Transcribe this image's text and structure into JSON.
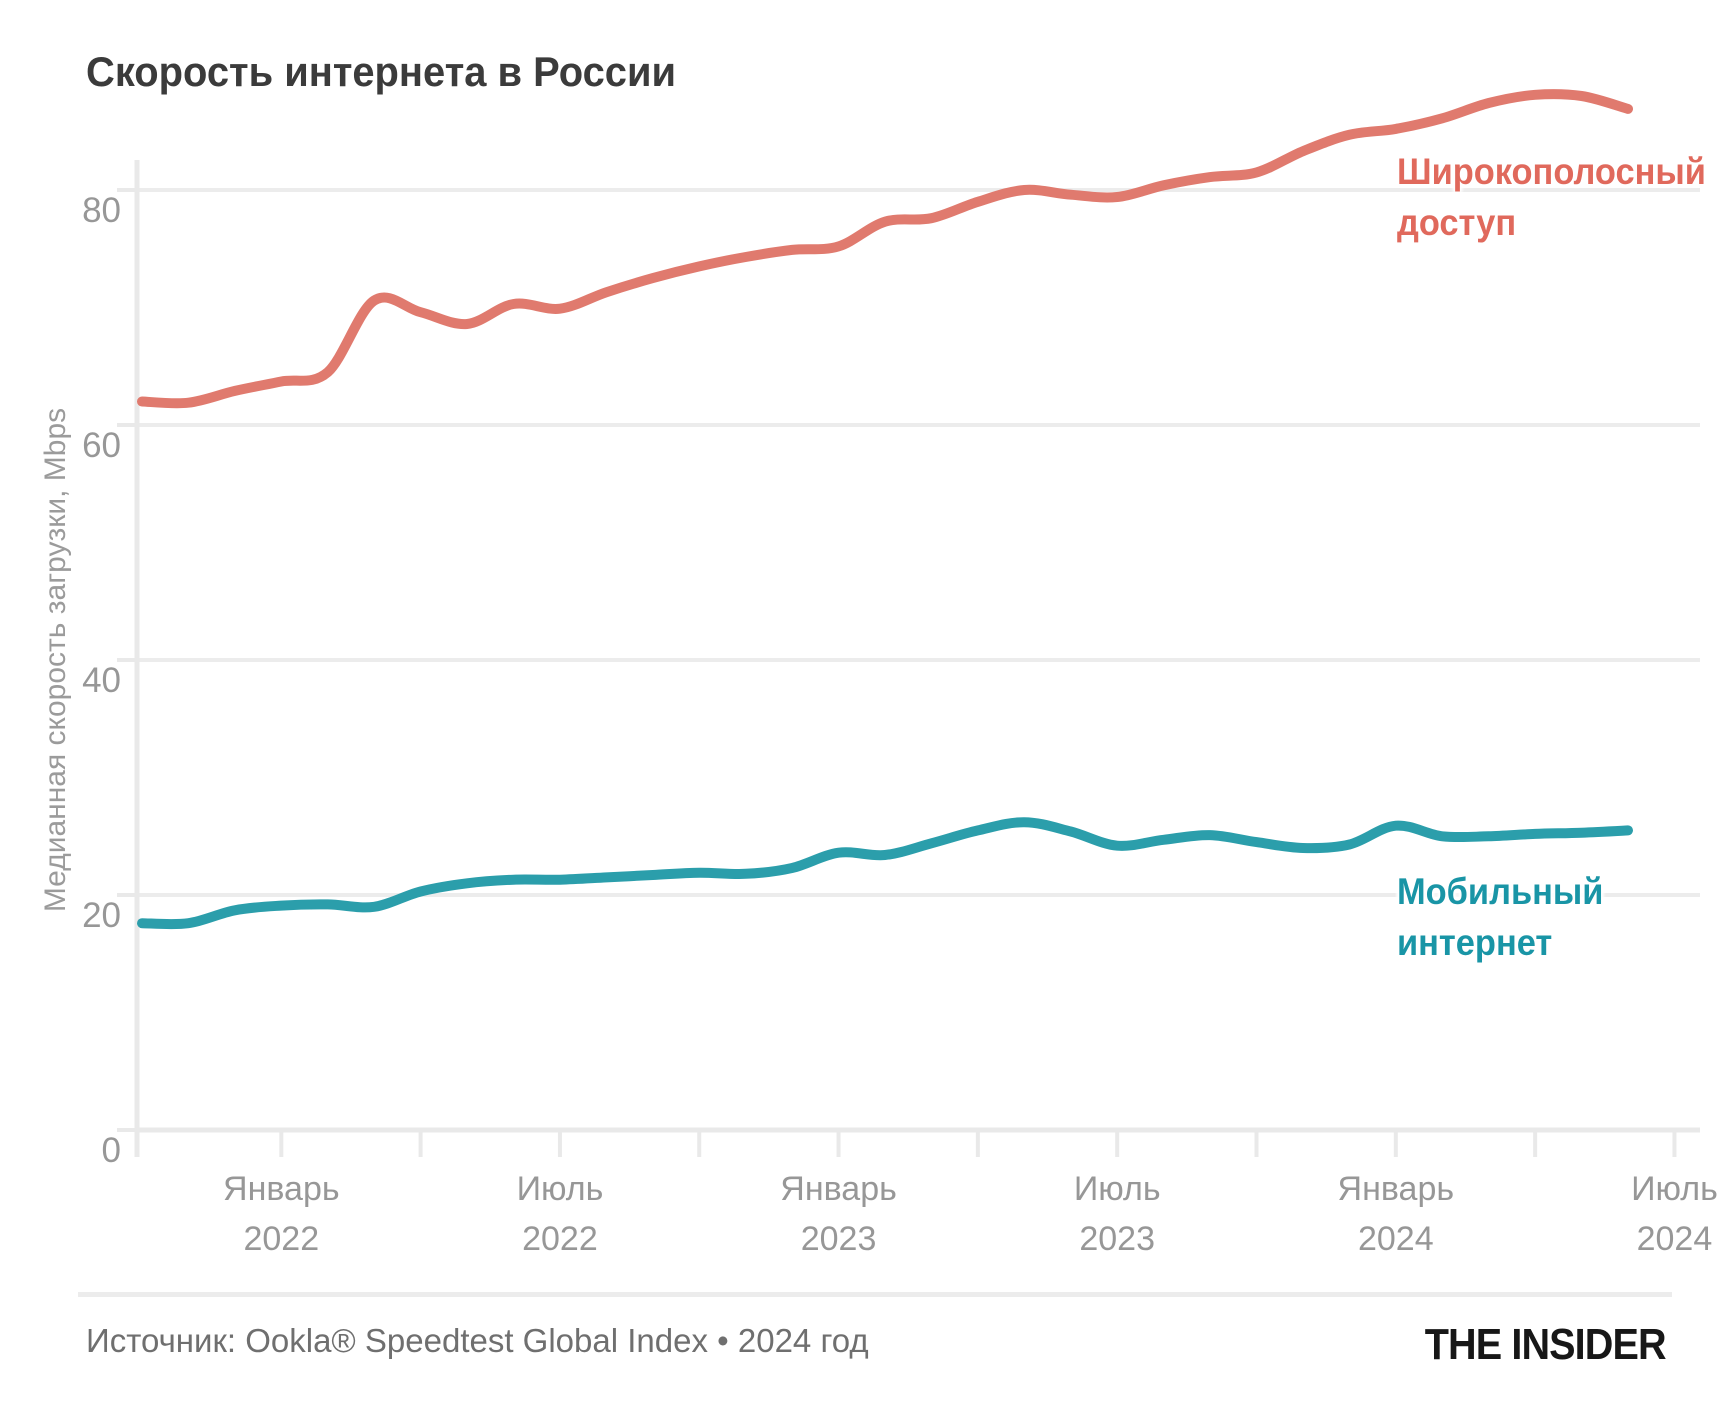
{
  "chart_data": {
    "type": "line",
    "title": "Скорость интернета в России",
    "ylabel": "Медианная скорость загрузки, Mbps",
    "ylim": [
      0,
      90
    ],
    "y_ticks": [
      0,
      20,
      40,
      60,
      80
    ],
    "grid": true,
    "legend_position": "end-of-line",
    "x": [
      "2021-10",
      "2021-11",
      "2021-12",
      "2022-01",
      "2022-02",
      "2022-03",
      "2022-04",
      "2022-05",
      "2022-06",
      "2022-07",
      "2022-08",
      "2022-09",
      "2022-10",
      "2022-11",
      "2022-12",
      "2023-01",
      "2023-02",
      "2023-03",
      "2023-04",
      "2023-05",
      "2023-06",
      "2023-07",
      "2023-08",
      "2023-09",
      "2023-10",
      "2023-11",
      "2023-12",
      "2024-01",
      "2024-02",
      "2024-03",
      "2024-04",
      "2024-05",
      "2024-06"
    ],
    "x_tick_month_indices": [
      3,
      6,
      9,
      12,
      15,
      18,
      21,
      24,
      27,
      30,
      33
    ],
    "x_labels": [
      {
        "month": "Январь",
        "year": "2022",
        "index": 3
      },
      {
        "month": "Июль",
        "year": "2022",
        "index": 9
      },
      {
        "month": "Январь",
        "year": "2023",
        "index": 15
      },
      {
        "month": "Июль",
        "year": "2023",
        "index": 21
      },
      {
        "month": "Январь",
        "year": "2024",
        "index": 27
      },
      {
        "month": "Июль",
        "year": "2024",
        "index": 33
      }
    ],
    "series": [
      {
        "name": "Широкополосный доступ",
        "label_lines": [
          "Широкополосный",
          "доступ"
        ],
        "color": "#e07a6e",
        "label_color": "#e0695c",
        "values": [
          62.0,
          61.9,
          62.9,
          63.7,
          64.5,
          70.6,
          69.6,
          68.6,
          70.3,
          69.9,
          71.3,
          72.5,
          73.5,
          74.3,
          74.9,
          75.2,
          77.3,
          77.6,
          79.0,
          80.0,
          79.6,
          79.4,
          80.4,
          81.1,
          81.5,
          83.3,
          84.7,
          85.2,
          86.1,
          87.4,
          88.1,
          88.0,
          86.9
        ]
      },
      {
        "name": "Мобильный интернет",
        "label_lines": [
          "Мобильный",
          "интернет"
        ],
        "color": "#2b9eab",
        "label_color": "#1995a6",
        "values": [
          17.6,
          17.6,
          18.7,
          19.1,
          19.2,
          19.0,
          20.3,
          21.0,
          21.3,
          21.3,
          21.5,
          21.7,
          21.9,
          21.8,
          22.3,
          23.6,
          23.4,
          24.4,
          25.5,
          26.2,
          25.4,
          24.2,
          24.7,
          25.1,
          24.5,
          24.0,
          24.3,
          25.9,
          25.0,
          25.0,
          25.2,
          25.3,
          25.5
        ]
      }
    ]
  },
  "footer": {
    "source": "Источник: Ookla® Speedtest Global Index • 2024 год",
    "logo": "THE INSIDER"
  },
  "colors": {
    "grid": "#ececec",
    "axis": "#e9e9e9",
    "tick_label": "#979797",
    "title": "#3b3b3b",
    "source": "#6f6f6f"
  }
}
